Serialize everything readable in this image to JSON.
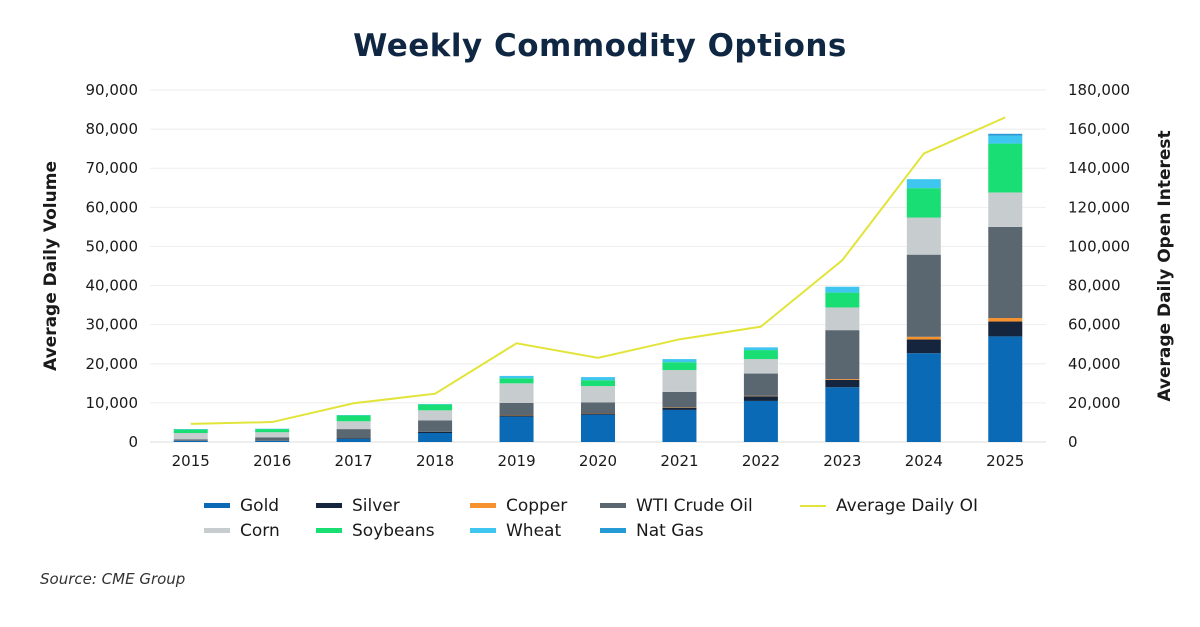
{
  "chart_data": {
    "type": "bar",
    "stacked": true,
    "title": "Weekly Commodity Options",
    "ylabel": "Average Daily Volume",
    "y2label": "Average Daily Open Interest",
    "ylim": [
      0,
      90000
    ],
    "y2lim": [
      0,
      180000
    ],
    "yticks": [
      "0",
      "10,000",
      "20,000",
      "30,000",
      "40,000",
      "50,000",
      "60,000",
      "70,000",
      "80,000",
      "90,000"
    ],
    "y2ticks": [
      "0",
      "20,000",
      "40,000",
      "60,000",
      "80,000",
      "100,000",
      "120,000",
      "140,000",
      "160,000",
      "180,000"
    ],
    "grid": true,
    "legend_position": "bottom",
    "categories": [
      "2015",
      "2016",
      "2017",
      "2018",
      "2019",
      "2020",
      "2021",
      "2022",
      "2023",
      "2024",
      "2025"
    ],
    "series": [
      {
        "name": "Gold",
        "color": "#0a6ab5",
        "values": [
          300,
          300,
          800,
          2300,
          6500,
          7000,
          8200,
          10500,
          14000,
          22700,
          27000
        ]
      },
      {
        "name": "Silver",
        "color": "#14253d",
        "values": [
          0,
          0,
          200,
          300,
          300,
          300,
          500,
          1200,
          1900,
          3500,
          3800
        ]
      },
      {
        "name": "Copper",
        "color": "#f5922f",
        "values": [
          0,
          0,
          0,
          0,
          100,
          100,
          100,
          100,
          200,
          700,
          900
        ]
      },
      {
        "name": "WTI Crude Oil",
        "color": "#5b6770",
        "values": [
          400,
          900,
          2300,
          2900,
          3100,
          2700,
          4000,
          5700,
          12500,
          21000,
          23300
        ]
      },
      {
        "name": "Corn",
        "color": "#c7ccce",
        "values": [
          1600,
          1300,
          2000,
          2600,
          5000,
          4200,
          5600,
          3700,
          5800,
          9500,
          8800
        ]
      },
      {
        "name": "Soybeans",
        "color": "#18de74",
        "values": [
          900,
          800,
          1500,
          1500,
          1300,
          1500,
          2000,
          2300,
          3800,
          7500,
          12500
        ]
      },
      {
        "name": "Wheat",
        "color": "#3fc6f0",
        "values": [
          100,
          100,
          100,
          100,
          600,
          800,
          800,
          700,
          1500,
          2300,
          2000
        ]
      },
      {
        "name": "Nat Gas",
        "color": "#269ad5",
        "values": [
          0,
          0,
          0,
          0,
          0,
          0,
          0,
          0,
          0,
          0,
          500
        ]
      }
    ],
    "line_series": {
      "name": "Average Daily OI",
      "color": "#e2e43a",
      "axis": "right",
      "values": [
        9300,
        10200,
        19800,
        24700,
        50500,
        43000,
        52500,
        59000,
        93000,
        147500,
        166000
      ]
    },
    "source": "Source: CME Group"
  }
}
